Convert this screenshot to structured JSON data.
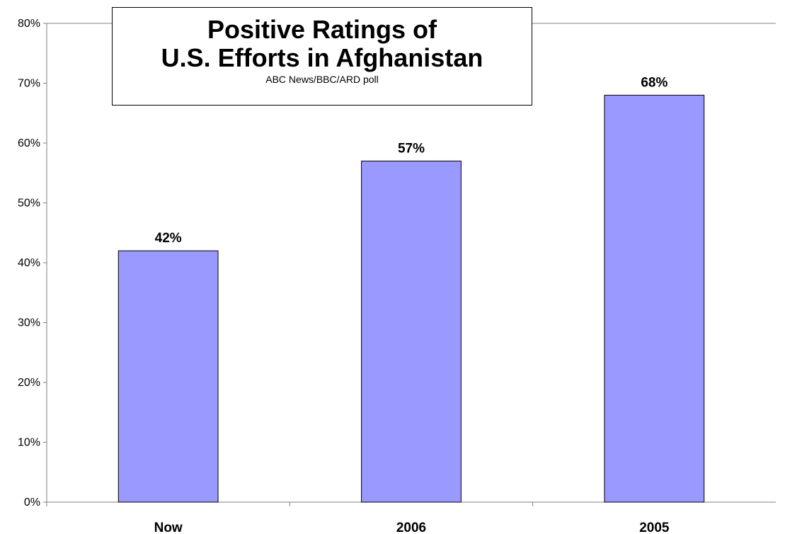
{
  "chart_data": {
    "type": "bar",
    "title_lines": [
      "Positive Ratings of",
      "U.S. Efforts in Afghanistan"
    ],
    "subtitle": "ABC News/BBC/ARD poll",
    "categories": [
      "Now",
      "2006",
      "2005"
    ],
    "values": [
      42,
      57,
      68
    ],
    "data_labels": [
      "42%",
      "57%",
      "68%"
    ],
    "xlabel": "",
    "ylabel": "",
    "ylim": [
      0,
      80
    ],
    "y_ticks": [
      0,
      10,
      20,
      30,
      40,
      50,
      60,
      70,
      80
    ],
    "y_tick_labels": [
      "0%",
      "10%",
      "20%",
      "30%",
      "40%",
      "50%",
      "60%",
      "70%",
      "80%"
    ],
    "grid": false,
    "legend": "none",
    "bar_color": "#9999ff",
    "bar_outline_color": "#000000",
    "axis_color": "#808080"
  }
}
